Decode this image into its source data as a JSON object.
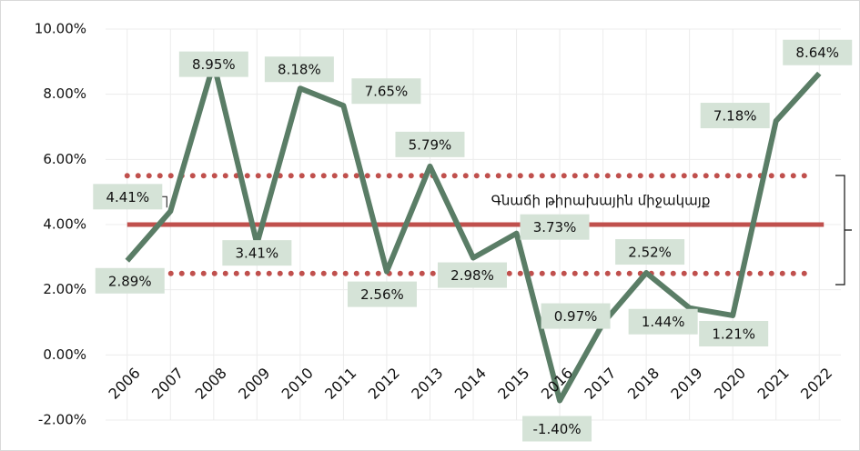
{
  "chart_data": {
    "type": "line",
    "categories": [
      "2006",
      "2007",
      "2008",
      "2009",
      "2010",
      "2011",
      "2012",
      "2013",
      "2014",
      "2015",
      "2016",
      "2017",
      "2018",
      "2019",
      "2020",
      "2021",
      "2022"
    ],
    "values": [
      2.89,
      4.41,
      8.95,
      3.41,
      8.18,
      7.65,
      2.56,
      5.79,
      2.98,
      3.73,
      -1.4,
      0.97,
      2.52,
      1.44,
      1.21,
      7.18,
      8.64
    ],
    "value_labels": [
      "2.89%",
      "4.41%",
      "8.95%",
      "3.41%",
      "8.18%",
      "7.65%",
      "2.56%",
      "5.79%",
      "2.98%",
      "3.73%",
      "-1.40%",
      "0.97%",
      "2.52%",
      "1.44%",
      "1.21%",
      "7.18%",
      "8.64%"
    ],
    "color": "#5a7d66",
    "ylim": [
      -2,
      10
    ],
    "yticks": [
      {
        "value": -2,
        "label": "-2.00%"
      },
      {
        "value": 0,
        "label": "0.00%"
      },
      {
        "value": 2,
        "label": "2.00%"
      },
      {
        "value": 4,
        "label": "4.00%"
      },
      {
        "value": 6,
        "label": "6.00%"
      },
      {
        "value": 8,
        "label": "8.00%"
      },
      {
        "value": 10,
        "label": "10.00%"
      }
    ],
    "grid": true,
    "target_line": {
      "value": 4,
      "color": "#c0504d"
    },
    "target_band": [
      2.5,
      5.5
    ],
    "annotation": "Գնաճի թիրախային միջակայք"
  }
}
